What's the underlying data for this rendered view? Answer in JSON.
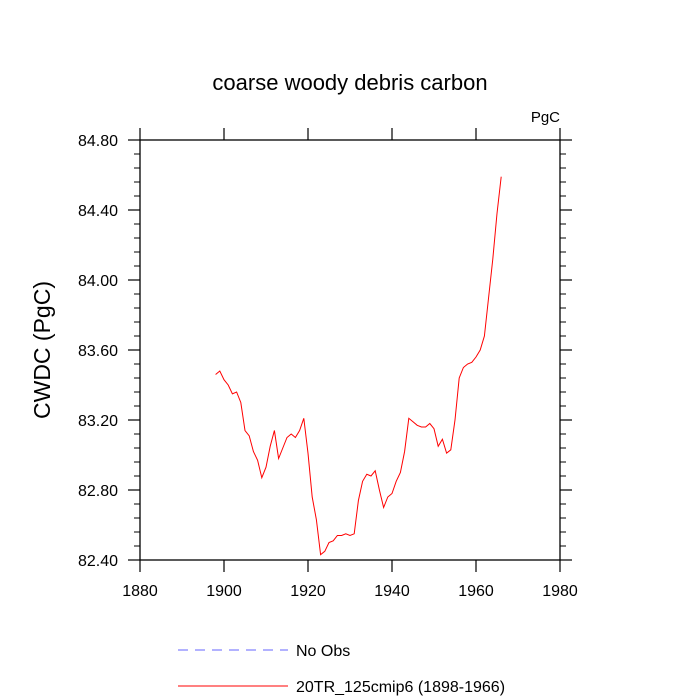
{
  "chart_data": {
    "type": "line",
    "title": "coarse woody debris carbon",
    "units_label": "PgC",
    "ylabel": "CWDC  (PgC)",
    "xlabel": "",
    "xlim": [
      1880,
      1980
    ],
    "ylim": [
      82.4,
      84.8
    ],
    "xticks": [
      1880,
      1900,
      1920,
      1940,
      1960,
      1980
    ],
    "xtick_labels": [
      "1880",
      "1900",
      "1920",
      "1940",
      "1960",
      "1980"
    ],
    "yticks": [
      82.4,
      82.8,
      83.2,
      83.6,
      84.0,
      84.4,
      84.8
    ],
    "ytick_labels": [
      "82.40",
      "82.80",
      "83.20",
      "83.60",
      "84.00",
      "84.40",
      "84.80"
    ],
    "grid": false,
    "legend_position": "bottom",
    "series": [
      {
        "name": "No Obs",
        "color": "#6666ff",
        "dash": true,
        "x": [],
        "y": []
      },
      {
        "name": "20TR_125cmip6 (1898-1966)",
        "color": "#ff0000",
        "dash": false,
        "x": [
          1898,
          1899,
          1900,
          1901,
          1902,
          1903,
          1904,
          1905,
          1906,
          1907,
          1908,
          1909,
          1910,
          1911,
          1912,
          1913,
          1914,
          1915,
          1916,
          1917,
          1918,
          1919,
          1920,
          1921,
          1922,
          1923,
          1924,
          1925,
          1926,
          1927,
          1928,
          1929,
          1930,
          1931,
          1932,
          1933,
          1934,
          1935,
          1936,
          1937,
          1938,
          1939,
          1940,
          1941,
          1942,
          1943,
          1944,
          1945,
          1946,
          1947,
          1948,
          1949,
          1950,
          1951,
          1952,
          1953,
          1954,
          1955,
          1956,
          1957,
          1958,
          1959,
          1960,
          1961,
          1962,
          1963,
          1964,
          1965,
          1966
        ],
        "y": [
          83.46,
          83.48,
          83.43,
          83.4,
          83.35,
          83.36,
          83.3,
          83.14,
          83.11,
          83.02,
          82.97,
          82.87,
          82.93,
          83.05,
          83.14,
          82.98,
          83.04,
          83.1,
          83.12,
          83.1,
          83.14,
          83.21,
          83.01,
          82.76,
          82.63,
          82.43,
          82.45,
          82.5,
          82.51,
          82.54,
          82.54,
          82.55,
          82.54,
          82.55,
          82.74,
          82.85,
          82.89,
          82.88,
          82.91,
          82.8,
          82.7,
          82.76,
          82.78,
          82.85,
          82.9,
          83.02,
          83.21,
          83.19,
          83.17,
          83.16,
          83.16,
          83.18,
          83.15,
          83.05,
          83.09,
          83.01,
          83.03,
          83.2,
          83.44,
          83.5,
          83.52,
          83.53,
          83.56,
          83.6,
          83.68,
          83.9,
          84.12,
          84.38,
          84.59
        ]
      }
    ]
  }
}
